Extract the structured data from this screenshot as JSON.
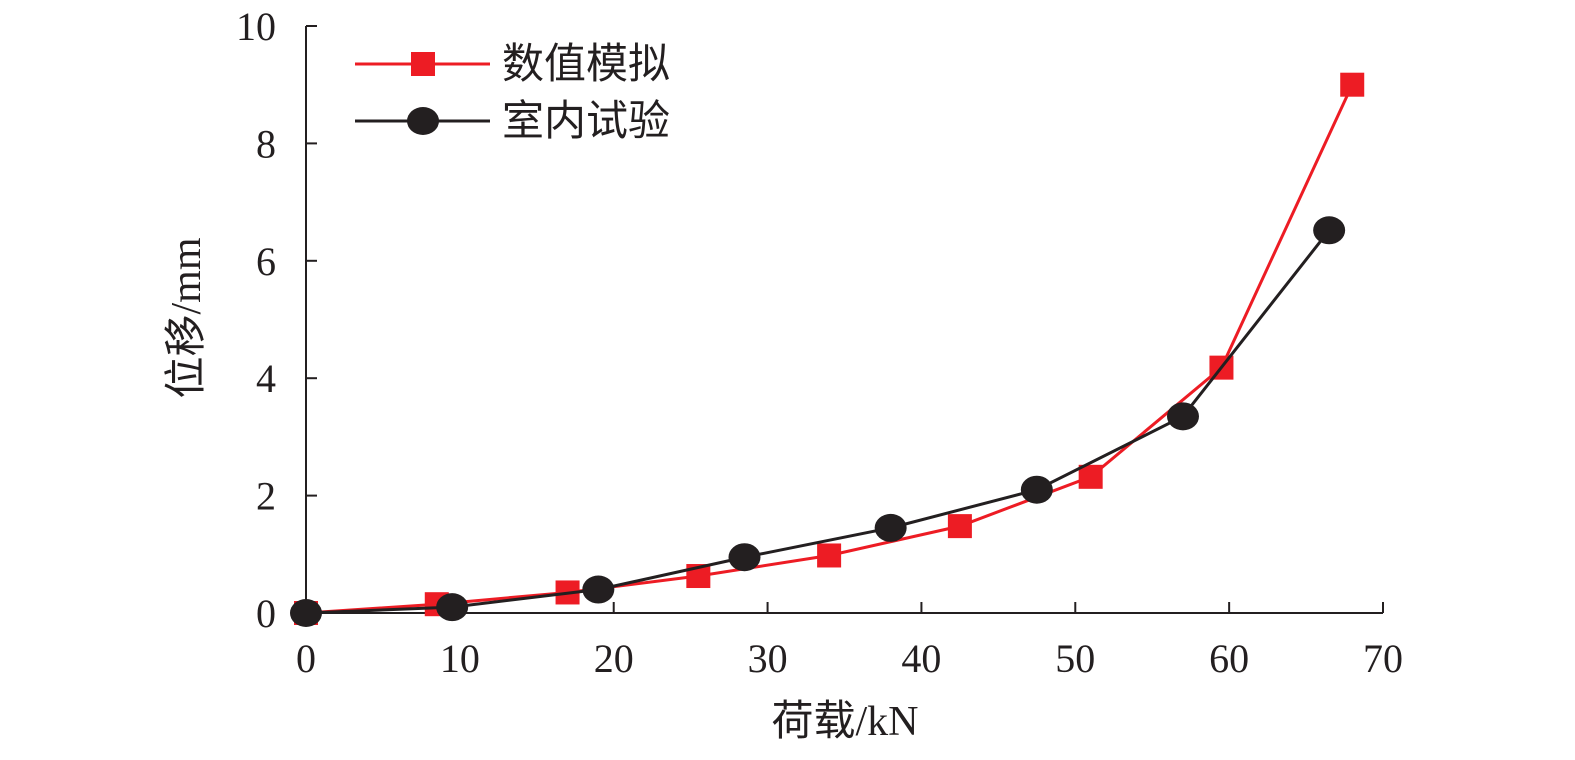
{
  "chart_data": {
    "type": "line",
    "title": "",
    "xlabel": "荷载/kN",
    "ylabel": "位移/mm",
    "xlim": [
      0,
      70
    ],
    "ylim": [
      0,
      10
    ],
    "xticks": [
      "0",
      "10",
      "20",
      "30",
      "40",
      "50",
      "60",
      "70"
    ],
    "yticks": [
      "0",
      "2",
      "4",
      "6",
      "8",
      "10"
    ],
    "grid": false,
    "legend_position": "top-left",
    "series": [
      {
        "name": "数值模拟",
        "color": "#ed1c24",
        "marker": "square",
        "x": [
          0,
          8.5,
          17,
          25.5,
          34,
          42.5,
          51,
          59.5,
          68
        ],
        "y": [
          0,
          0.15,
          0.35,
          0.63,
          0.98,
          1.48,
          2.32,
          4.18,
          9.0
        ]
      },
      {
        "name": "室内试验",
        "color": "#231f20",
        "marker": "circle",
        "x": [
          0,
          9.5,
          19,
          28.5,
          38,
          47.5,
          57,
          66.5
        ],
        "y": [
          0,
          0.1,
          0.4,
          0.95,
          1.45,
          2.1,
          3.35,
          6.52
        ]
      }
    ]
  }
}
